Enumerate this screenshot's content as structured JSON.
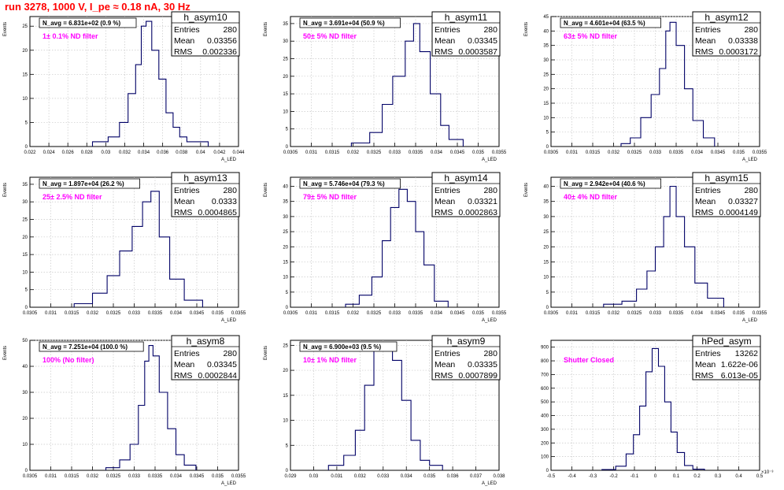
{
  "header": {
    "title": "run 3278,  1000 V, I_pe ≈ 0.18 nA,  30 Hz"
  },
  "chart_data": [
    {
      "type": "bar",
      "name": "h_asym10",
      "annotation": "N_avg = 6.831e+02 (0.9 %)",
      "filter": "1± 0.1% ND filter",
      "stats": {
        "entries": "280",
        "mean": "0.03356",
        "rms": "0.002336"
      },
      "xlabel": "A_LED",
      "ylabel": "Events",
      "xlim": [
        0.022,
        0.044
      ],
      "ylim": [
        0,
        27
      ],
      "xticks": [
        "0.022",
        "0.024",
        "0.026",
        "0.028",
        "0.03",
        "0.032",
        "0.034",
        "0.036",
        "0.038",
        "0.04",
        "0.042",
        "0.044"
      ],
      "yticks": [
        "0",
        "5",
        "10",
        "15",
        "20",
        "25"
      ],
      "x": [
        0.0295,
        0.031,
        0.0319,
        0.0328,
        0.0335,
        0.034,
        0.0345,
        0.0352,
        0.036,
        0.0367,
        0.0375,
        0.0381,
        0.039,
        0.0399
      ],
      "y": [
        1,
        2,
        5,
        11,
        17,
        25,
        26,
        20,
        14,
        7,
        4,
        2,
        1,
        1
      ]
    },
    {
      "type": "bar",
      "name": "h_asym11",
      "annotation": "N_avg = 3.691e+04 (50.9 %)",
      "filter": "50± 5% ND filter",
      "stats": {
        "entries": "280",
        "mean": "0.03345",
        "rms": "0.0003587"
      },
      "xlabel": "A_LED",
      "ylabel": "Events",
      "xlim": [
        0.0305,
        0.0355
      ],
      "ylim": [
        0,
        37
      ],
      "xticks": [
        "0.0305",
        "0.031",
        "0.0315",
        "0.032",
        "0.0325",
        "0.033",
        "0.0335",
        "0.034",
        "0.0345",
        "0.035",
        "0.0355"
      ],
      "yticks": [
        "0",
        "5",
        "10",
        "15",
        "20",
        "25",
        "30",
        "35"
      ],
      "x": [
        0.0322,
        0.0326,
        0.0328,
        0.0331,
        0.0334,
        0.0335,
        0.0337,
        0.034,
        0.0342,
        0.0344
      ],
      "y": [
        1,
        4,
        12,
        20,
        30,
        35,
        27,
        15,
        6,
        2
      ]
    },
    {
      "type": "bar",
      "name": "h_asym12",
      "annotation": "N_avg = 4.601e+04 (63.5 %)",
      "filter": "63± 5% ND filter",
      "stats": {
        "entries": "280",
        "mean": "0.03338",
        "rms": "0.0003172"
      },
      "xlabel": "A_LED",
      "ylabel": "Events",
      "xlim": [
        0.0305,
        0.0355
      ],
      "ylim": [
        0,
        45
      ],
      "xticks": [
        "0.0305",
        "0.031",
        "0.0315",
        "0.032",
        "0.0325",
        "0.033",
        "0.0335",
        "0.034",
        "0.0345",
        "0.035",
        "0.0355"
      ],
      "yticks": [
        "0",
        "5",
        "10",
        "15",
        "20",
        "25",
        "30",
        "35",
        "40",
        "45"
      ],
      "x": [
        0.0323,
        0.0325,
        0.0328,
        0.033,
        0.0332,
        0.0333,
        0.0334,
        0.0336,
        0.0338,
        0.034,
        0.0343
      ],
      "y": [
        1,
        3,
        10,
        18,
        27,
        40,
        43,
        35,
        20,
        9,
        3
      ]
    },
    {
      "type": "bar",
      "name": "h_asym13",
      "annotation": "N_avg = 1.897e+04 (26.2 %)",
      "filter": "25± 2.5% ND filter",
      "stats": {
        "entries": "280",
        "mean": "0.0333",
        "rms": "0.0004865"
      },
      "xlabel": "A_LED",
      "ylabel": "Events",
      "xlim": [
        0.0305,
        0.0355
      ],
      "ylim": [
        0,
        37
      ],
      "xticks": [
        "0.0305",
        "0.031",
        "0.0315",
        "0.032",
        "0.0325",
        "0.033",
        "0.0335",
        "0.034",
        "0.0345",
        "0.035",
        "0.0355"
      ],
      "yticks": [
        "0",
        "5",
        "10",
        "15",
        "20",
        "25",
        "30",
        "35"
      ],
      "x": [
        0.0318,
        0.0322,
        0.0325,
        0.0328,
        0.0331,
        0.0333,
        0.0335,
        0.0337,
        0.034,
        0.0344
      ],
      "y": [
        1,
        4,
        9,
        16,
        23,
        30,
        33,
        20,
        8,
        2
      ]
    },
    {
      "type": "bar",
      "name": "h_asym14",
      "annotation": "N_avg = 5.746e+04 (79.3 %)",
      "filter": "79± 5% ND filter",
      "stats": {
        "entries": "280",
        "mean": "0.03321",
        "rms": "0.0002863"
      },
      "xlabel": "A_LED",
      "ylabel": "Events",
      "xlim": [
        0.0305,
        0.0355
      ],
      "ylim": [
        0,
        43
      ],
      "xticks": [
        "0.0305",
        "0.031",
        "0.0315",
        "0.032",
        "0.0325",
        "0.033",
        "0.0335",
        "0.034",
        "0.0345",
        "0.035",
        "0.0355"
      ],
      "yticks": [
        "0",
        "5",
        "10",
        "15",
        "20",
        "25",
        "30",
        "35",
        "40"
      ],
      "x": [
        0.032,
        0.0323,
        0.0326,
        0.0328,
        0.033,
        0.0332,
        0.0334,
        0.0336,
        0.0338,
        0.0341
      ],
      "y": [
        1,
        4,
        10,
        22,
        33,
        39,
        35,
        25,
        14,
        2
      ]
    },
    {
      "type": "bar",
      "name": "h_asym15",
      "annotation": "N_avg = 2.942e+04 (40.6 %)",
      "filter": "40± 4% ND filter",
      "stats": {
        "entries": "280",
        "mean": "0.03327",
        "rms": "0.0004149"
      },
      "xlabel": "A_LED",
      "ylabel": "Events",
      "xlim": [
        0.0305,
        0.0355
      ],
      "ylim": [
        0,
        43
      ],
      "xticks": [
        "0.0305",
        "0.031",
        "0.0315",
        "0.032",
        "0.0325",
        "0.033",
        "0.0335",
        "0.034",
        "0.0345",
        "0.035",
        "0.0355"
      ],
      "yticks": [
        "0",
        "5",
        "10",
        "15",
        "20",
        "25",
        "30",
        "35",
        "40"
      ],
      "x": [
        0.032,
        0.0324,
        0.0327,
        0.0329,
        0.0331,
        0.0333,
        0.0334,
        0.0336,
        0.0338,
        0.0341,
        0.0344
      ],
      "y": [
        1,
        2,
        6,
        12,
        20,
        30,
        40,
        30,
        20,
        8,
        3
      ]
    },
    {
      "type": "bar",
      "name": "h_asym8",
      "annotation": "N_avg = 7.251e+04 (100.0 %)",
      "filter": "100% (No filter)",
      "stats": {
        "entries": "280",
        "mean": "0.03345",
        "rms": "0.0002844"
      },
      "xlabel": "A_LED",
      "ylabel": "Events",
      "xlim": [
        0.0305,
        0.0355
      ],
      "ylim": [
        0,
        50
      ],
      "xticks": [
        "0.0305",
        "0.031",
        "0.0315",
        "0.032",
        "0.0325",
        "0.033",
        "0.0335",
        "0.034",
        "0.0345",
        "0.035",
        "0.0355"
      ],
      "yticks": [
        "0",
        "10",
        "20",
        "30",
        "40",
        "50"
      ],
      "x": [
        0.0325,
        0.0328,
        0.033,
        0.0332,
        0.0333,
        0.0334,
        0.0335,
        0.0337,
        0.0339,
        0.0341,
        0.0343
      ],
      "y": [
        1,
        4,
        10,
        25,
        42,
        48,
        44,
        30,
        16,
        6,
        2
      ]
    },
    {
      "type": "bar",
      "name": "h_asym9",
      "annotation": "N_avg = 6.900e+03 (9.5 %)",
      "filter": "10± 1% ND filter",
      "stats": {
        "entries": "280",
        "mean": "0.03335",
        "rms": "0.0007899"
      },
      "xlabel": "A_LED",
      "ylabel": "Events",
      "xlim": [
        0.029,
        0.038
      ],
      "ylim": [
        0,
        26
      ],
      "xticks": [
        "0.029",
        "0.03",
        "0.031",
        "0.032",
        "0.033",
        "0.034",
        "0.035",
        "0.036",
        "0.037",
        "0.038"
      ],
      "yticks": [
        "0",
        "5",
        "10",
        "15",
        "20",
        "25"
      ],
      "x": [
        0.031,
        0.0316,
        0.032,
        0.0324,
        0.0328,
        0.0332,
        0.0336,
        0.034,
        0.0344,
        0.0348,
        0.0352
      ],
      "y": [
        1,
        3,
        8,
        17,
        24,
        25,
        22,
        14,
        6,
        2,
        1
      ]
    },
    {
      "type": "bar",
      "name": "hPed_asym",
      "annotation": "",
      "filter": "Shutter Closed",
      "stats": {
        "entries": "13262",
        "mean": "1.622e-06",
        "rms": "6.013e-05"
      },
      "xlabel": "",
      "ylabel": "",
      "xscale": "×10⁻³",
      "xlim": [
        -0.5,
        0.5
      ],
      "ylim": [
        0,
        950
      ],
      "xticks": [
        "-0.5",
        "-0.4",
        "-0.3",
        "-0.2",
        "-0.1",
        "0",
        "0.1",
        "0.2",
        "0.3",
        "0.4",
        "0.5"
      ],
      "yticks": [
        "0",
        "100",
        "200",
        "300",
        "400",
        "500",
        "600",
        "700",
        "800",
        "900"
      ],
      "x": [
        -0.22,
        -0.16,
        -0.12,
        -0.09,
        -0.06,
        -0.03,
        0.0,
        0.03,
        0.06,
        0.09,
        0.12,
        0.16,
        0.2
      ],
      "y": [
        5,
        30,
        120,
        260,
        470,
        720,
        890,
        760,
        500,
        280,
        130,
        35,
        8
      ]
    }
  ]
}
